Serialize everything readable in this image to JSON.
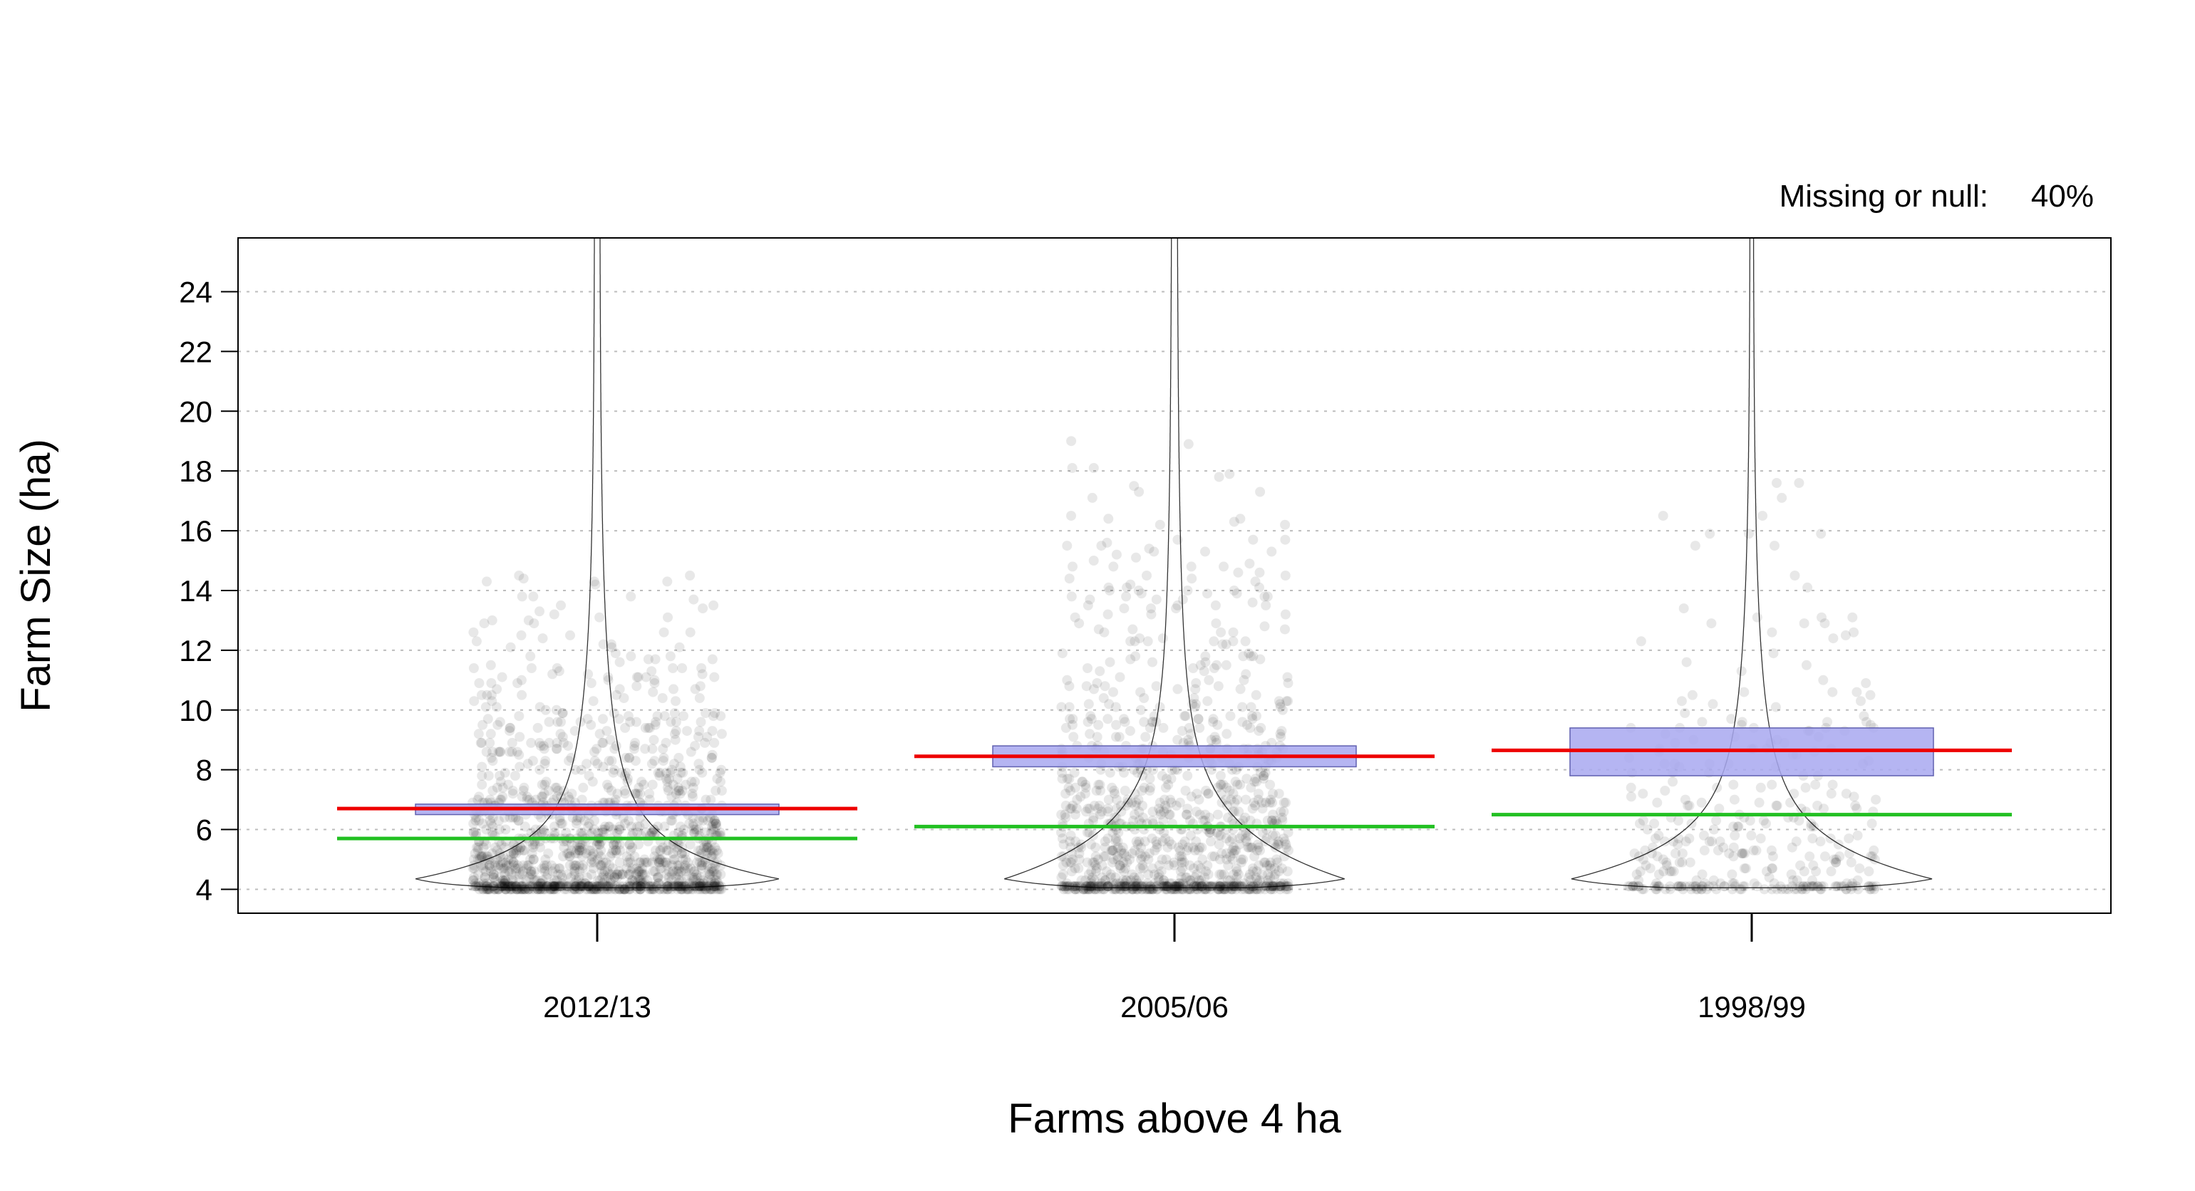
{
  "chart_data": {
    "type": "scatter",
    "subtype": "violin-jitter-with-mean-band",
    "title": "",
    "xlabel": "Farms above 4 ha",
    "ylabel": "Farm Size (ha)",
    "annotation": {
      "label": "Missing or null:",
      "value": "40%"
    },
    "categories": [
      "2012/13",
      "2005/06",
      "1998/99"
    ],
    "ylim": [
      3.2,
      25.8
    ],
    "yticks": [
      4,
      6,
      8,
      10,
      12,
      14,
      16,
      18,
      20,
      22,
      24
    ],
    "grid": "horizontal-dotted",
    "groups": [
      {
        "category": "2012/13",
        "mean": 6.7,
        "mean_ci": [
          6.5,
          6.85
        ],
        "median": 5.7,
        "n_points_approx": 1400,
        "spread_max": 25.0
      },
      {
        "category": "2005/06",
        "mean": 8.45,
        "mean_ci": [
          8.1,
          8.8
        ],
        "median": 6.1,
        "n_points_approx": 1100,
        "spread_max": 25.2
      },
      {
        "category": "1998/99",
        "mean": 8.65,
        "mean_ci": [
          7.8,
          9.4
        ],
        "median": 6.5,
        "n_points_approx": 350,
        "spread_max": 25.5
      }
    ],
    "colors": {
      "mean_line": "#ee0000",
      "median_line": "#22c022",
      "ci_band": "#a8a8f0",
      "ci_band_border": "#6060b0",
      "points": "#000000",
      "violin": "#333333",
      "grid": "#bdbdbd"
    }
  }
}
